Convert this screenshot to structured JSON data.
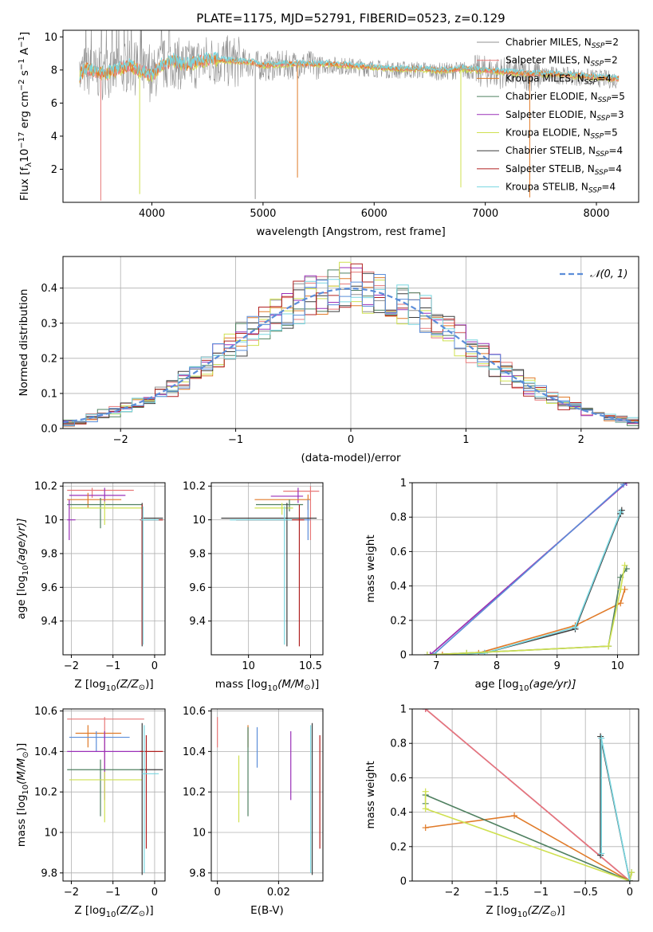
{
  "figure_title": "PLATE=1175, MJD=52791, FIBERID=0523, z=0.129",
  "colors": {
    "chabrier_miles": "#909090",
    "salpeter_miles": "#e87878",
    "kroupa_miles": "#e07a28",
    "chabrier_elodie": "#4f8060",
    "salpeter_elodie": "#9a30b8",
    "kroupa_elodie": "#cfe050",
    "chabrier_stelib": "#3c3c3c",
    "salpeter_stelib": "#b02020",
    "kroupa_stelib": "#78d6e0",
    "normal_curve": "#5b8dd9",
    "grid": "#b0b0b0"
  },
  "chart_data": [
    {
      "id": "spectrum",
      "type": "line",
      "title": "PLATE=1175, MJD=52791, FIBERID=0523, z=0.129",
      "xlabel": "wavelength [Angstrom, rest frame]",
      "ylabel_parts": [
        "Flux [f",
        "λ",
        "10",
        "−17",
        " erg cm",
        "−2",
        " s",
        "−1",
        " A",
        "−1",
        "]"
      ],
      "xlim": [
        3200,
        8380
      ],
      "ylim": [
        0,
        10.4
      ],
      "xticks": [
        4000,
        5000,
        6000,
        7000,
        8000
      ],
      "yticks": [
        2,
        4,
        6,
        8,
        10
      ],
      "grid": false,
      "legend_position": "right",
      "series": [
        {
          "name": "Chabrier MILES, N",
          "sub": "SSP",
          "suffix": "=2",
          "color_key": "chabrier_miles",
          "noisy": true
        },
        {
          "name": "Salpeter MILES, N",
          "sub": "SSP",
          "suffix": "=2",
          "color_key": "salpeter_miles"
        },
        {
          "name": "Kroupa MILES, N",
          "sub": "SSP",
          "suffix": "=4",
          "color_key": "kroupa_miles"
        },
        {
          "name": "Chabrier ELODIE, N",
          "sub": "SSP",
          "suffix": "=5",
          "color_key": "chabrier_elodie"
        },
        {
          "name": "Salpeter ELODIE, N",
          "sub": "SSP",
          "suffix": "=3",
          "color_key": "salpeter_elodie"
        },
        {
          "name": "Kroupa ELODIE, N",
          "sub": "SSP",
          "suffix": "=5",
          "color_key": "kroupa_elodie"
        },
        {
          "name": "Chabrier STELIB, N",
          "sub": "SSP",
          "suffix": "=4",
          "color_key": "chabrier_stelib"
        },
        {
          "name": "Salpeter STELIB, N",
          "sub": "SSP",
          "suffix": "=4",
          "color_key": "salpeter_stelib"
        },
        {
          "name": "Kroupa STELIB, N",
          "sub": "SSP",
          "suffix": "=4",
          "color_key": "kroupa_stelib"
        }
      ],
      "continuum": {
        "x": [
          3350,
          3400,
          3500,
          3600,
          3700,
          3800,
          3900,
          4000,
          4100,
          4200,
          4300,
          4400,
          4500,
          4700,
          4900,
          5000,
          5200,
          5400,
          5600,
          5800,
          6000,
          6200,
          6400,
          6600,
          6800,
          7000,
          7200,
          7400,
          7600,
          7800,
          8000,
          8200
        ],
        "y": [
          7.6,
          8.0,
          7.8,
          7.7,
          8.0,
          8.2,
          7.9,
          7.6,
          8.3,
          8.5,
          8.2,
          8.4,
          8.6,
          8.5,
          8.4,
          8.2,
          8.3,
          8.3,
          8.3,
          8.2,
          8.1,
          8.0,
          8.0,
          7.9,
          8.0,
          7.9,
          7.8,
          7.7,
          7.7,
          7.6,
          7.5,
          7.4
        ]
      },
      "dips": [
        {
          "x": 3540,
          "y": 0.1
        },
        {
          "x": 3890,
          "y": 0.5
        },
        {
          "x": 4930,
          "y": 0.2
        },
        {
          "x": 5310,
          "y": 1.5
        },
        {
          "x": 6780,
          "y": 0.9
        },
        {
          "x": 7400,
          "y": 0.3
        }
      ]
    },
    {
      "id": "residuals",
      "type": "histogram",
      "xlabel": "(data-model)/error",
      "ylabel": "Normed distribution",
      "xlim": [
        -2.5,
        2.5
      ],
      "ylim": [
        0,
        0.49
      ],
      "xticks": [
        -2,
        -1,
        0,
        1,
        2
      ],
      "yticks": [
        0.0,
        0.1,
        0.2,
        0.3,
        0.4
      ],
      "grid": true,
      "legend_position": "top-right",
      "curve_label": "𝒩(0, 1)",
      "bin_width": 0.1
    },
    {
      "id": "age_vs_z",
      "type": "errorbar",
      "xlabel_parts": [
        "Z [log",
        "10",
        "(Z/Z",
        "⊙",
        ")]"
      ],
      "ylabel_parts": [
        "age  [log",
        "10",
        "(age/yr)]"
      ],
      "xlim": [
        -2.2,
        0.25
      ],
      "ylim": [
        9.2,
        10.22
      ],
      "xticks": [
        -2,
        -1,
        0
      ],
      "yticks": [
        9.4,
        9.6,
        9.8,
        10.0,
        10.2
      ],
      "grid": true,
      "points": [
        {
          "x": -1.5,
          "xlo": -2.1,
          "xhi": -0.5,
          "y": 10.175,
          "ylo": 10.13,
          "yhi": 10.19,
          "c": "salpeter_miles"
        },
        {
          "x": -1.2,
          "xlo": -2.05,
          "xhi": -0.7,
          "y": 10.145,
          "ylo": 10.1,
          "yhi": 10.19,
          "c": "salpeter_elodie"
        },
        {
          "x": -1.6,
          "xlo": -2.1,
          "xhi": -0.8,
          "y": 10.12,
          "ylo": 10.07,
          "yhi": 10.16,
          "c": "kroupa_miles"
        },
        {
          "x": -1.3,
          "xlo": -2.1,
          "xhi": -0.3,
          "y": 10.09,
          "ylo": 9.95,
          "yhi": 10.13,
          "c": "chabrier_elodie"
        },
        {
          "x": -1.2,
          "xlo": -2.05,
          "xhi": -0.3,
          "y": 10.07,
          "ylo": 9.97,
          "yhi": 10.11,
          "c": "kroupa_elodie"
        },
        {
          "x": -2.05,
          "xlo": -2.1,
          "xhi": -1.9,
          "y": 10.0,
          "ylo": 9.88,
          "yhi": 10.12,
          "c": "salpeter_elodie"
        },
        {
          "x": -0.3,
          "xlo": -0.32,
          "xhi": 0.2,
          "y": 10.01,
          "ylo": 9.25,
          "yhi": 10.1,
          "c": "chabrier_stelib"
        },
        {
          "x": -0.3,
          "xlo": -0.35,
          "xhi": 0.2,
          "y": 10.0,
          "ylo": 9.26,
          "yhi": 10.09,
          "c": "salpeter_stelib"
        },
        {
          "x": -0.28,
          "xlo": -0.33,
          "xhi": 0.1,
          "y": 10.0,
          "ylo": 9.26,
          "yhi": 10.08,
          "c": "kroupa_stelib"
        }
      ]
    },
    {
      "id": "age_vs_mass",
      "type": "errorbar",
      "xlabel_parts": [
        "mass [log",
        "10",
        "(M/M",
        "⊙",
        ")]"
      ],
      "xlim": [
        9.7,
        10.6
      ],
      "ylim": [
        9.2,
        10.22
      ],
      "xticks": [
        10.0,
        10.5
      ],
      "yticks": [
        9.4,
        9.6,
        9.8,
        10.0,
        10.2
      ],
      "grid": true,
      "points": [
        {
          "x": 10.5,
          "xlo": 10.28,
          "xhi": 10.57,
          "y": 10.17,
          "ylo": 9.88,
          "yhi": 10.2,
          "c": "salpeter_miles"
        },
        {
          "x": 10.4,
          "xlo": 10.18,
          "xhi": 10.44,
          "y": 10.14,
          "ylo": 10.1,
          "yhi": 10.19,
          "c": "salpeter_elodie"
        },
        {
          "x": 10.48,
          "xlo": 10.05,
          "xhi": 10.5,
          "y": 10.12,
          "ylo": 10.06,
          "yhi": 10.15,
          "c": "kroupa_miles"
        },
        {
          "x": 10.33,
          "xlo": 10.06,
          "xhi": 10.44,
          "y": 10.09,
          "ylo": 10.05,
          "yhi": 10.12,
          "c": "chabrier_elodie"
        },
        {
          "x": 10.27,
          "xlo": 10.05,
          "xhi": 10.36,
          "y": 10.07,
          "ylo": 10.03,
          "yhi": 10.1,
          "c": "kroupa_elodie"
        },
        {
          "x": 10.48,
          "xlo": 10.45,
          "xhi": 10.5,
          "y": 10.0,
          "ylo": 9.88,
          "yhi": 10.12,
          "c": "normal_curve"
        },
        {
          "x": 10.31,
          "xlo": 9.78,
          "xhi": 10.55,
          "y": 10.01,
          "ylo": 9.25,
          "yhi": 10.1,
          "c": "chabrier_stelib"
        },
        {
          "x": 10.41,
          "xlo": 9.9,
          "xhi": 10.45,
          "y": 10.0,
          "ylo": 9.25,
          "yhi": 10.09,
          "c": "salpeter_stelib"
        },
        {
          "x": 10.29,
          "xlo": 9.85,
          "xhi": 10.35,
          "y": 10.0,
          "ylo": 9.26,
          "yhi": 10.08,
          "c": "kroupa_stelib"
        }
      ]
    },
    {
      "id": "weight_vs_age",
      "type": "line",
      "xlabel_parts": [
        "age  [log",
        "10",
        "(age/yr)]"
      ],
      "ylabel": "mass weight",
      "xlim": [
        6.6,
        10.35
      ],
      "ylim": [
        0,
        1.0
      ],
      "xticks": [
        7,
        8,
        9,
        10
      ],
      "yticks": [
        0.0,
        0.2,
        0.4,
        0.6,
        0.8,
        1.0
      ],
      "grid": true,
      "series": [
        {
          "c": "salpeter_miles",
          "x": [
            6.9,
            10.15
          ],
          "y": [
            0.0,
            1.0
          ]
        },
        {
          "c": "salpeter_elodie",
          "x": [
            6.9,
            10.15
          ],
          "y": [
            0.0,
            1.0
          ]
        },
        {
          "c": "normal_curve",
          "x": [
            6.95,
            10.1
          ],
          "y": [
            0.0,
            0.99
          ]
        },
        {
          "c": "kroupa_miles",
          "x": [
            7.1,
            7.7,
            9.3,
            10.05,
            10.12
          ],
          "y": [
            0.0,
            0.01,
            0.17,
            0.3,
            0.38
          ]
        },
        {
          "c": "chabrier_stelib",
          "x": [
            7.0,
            7.8,
            9.3,
            10.05,
            10.07
          ],
          "y": [
            0.0,
            0.01,
            0.15,
            0.82,
            0.84
          ]
        },
        {
          "c": "kroupa_stelib",
          "x": [
            7.0,
            7.8,
            9.3,
            10.05
          ],
          "y": [
            0.0,
            0.01,
            0.16,
            0.83
          ]
        },
        {
          "c": "chabrier_elodie",
          "x": [
            6.85,
            7.5,
            9.85,
            10.05,
            10.15
          ],
          "y": [
            0.0,
            0.01,
            0.05,
            0.45,
            0.5
          ]
        },
        {
          "c": "kroupa_elodie",
          "x": [
            6.85,
            7.5,
            9.85,
            10.05,
            10.12
          ],
          "y": [
            0.0,
            0.01,
            0.05,
            0.38,
            0.52
          ]
        }
      ]
    },
    {
      "id": "mass_vs_z",
      "type": "errorbar",
      "xlabel_parts": [
        "Z [log",
        "10",
        "(Z/Z",
        "⊙",
        ")]"
      ],
      "ylabel_parts": [
        "mass [log",
        "10",
        "(M/M",
        "⊙",
        ")]"
      ],
      "xlim": [
        -2.2,
        0.25
      ],
      "ylim": [
        9.76,
        10.61
      ],
      "xticks": [
        -2,
        -1,
        0
      ],
      "yticks": [
        9.8,
        10.0,
        10.2,
        10.4,
        10.6
      ],
      "grid": true,
      "points": [
        {
          "x": -1.2,
          "xlo": -2.1,
          "xhi": -0.25,
          "y": 10.56,
          "ylo": 10.3,
          "yhi": 10.57,
          "c": "salpeter_miles"
        },
        {
          "x": -1.6,
          "xlo": -1.9,
          "xhi": -0.8,
          "y": 10.49,
          "ylo": 10.42,
          "yhi": 10.53,
          "c": "kroupa_miles"
        },
        {
          "x": -1.4,
          "xlo": -2.05,
          "xhi": -0.6,
          "y": 10.47,
          "ylo": 10.4,
          "yhi": 10.5,
          "c": "normal_curve"
        },
        {
          "x": -1.2,
          "xlo": -2.1,
          "xhi": -0.3,
          "y": 10.4,
          "ylo": 10.16,
          "yhi": 10.5,
          "c": "salpeter_elodie"
        },
        {
          "x": -1.3,
          "xlo": -2.1,
          "xhi": -0.2,
          "y": 10.31,
          "ylo": 10.08,
          "yhi": 10.36,
          "c": "chabrier_elodie"
        },
        {
          "x": -1.2,
          "xlo": -2.05,
          "xhi": -0.3,
          "y": 10.26,
          "ylo": 10.05,
          "yhi": 10.3,
          "c": "kroupa_elodie"
        },
        {
          "x": -0.3,
          "xlo": -0.35,
          "xhi": 0.2,
          "y": 10.31,
          "ylo": 9.79,
          "yhi": 10.54,
          "c": "chabrier_stelib"
        },
        {
          "x": -0.2,
          "xlo": -0.35,
          "xhi": 0.2,
          "y": 10.4,
          "ylo": 9.92,
          "yhi": 10.48,
          "c": "salpeter_stelib"
        },
        {
          "x": -0.25,
          "xlo": -0.3,
          "xhi": 0.1,
          "y": 10.29,
          "ylo": 9.8,
          "yhi": 10.53,
          "c": "kroupa_stelib"
        }
      ]
    },
    {
      "id": "mass_vs_ebv",
      "type": "errorbar",
      "xlabel": "E(B-V)",
      "xlim": [
        -0.002,
        0.0345
      ],
      "ylim": [
        9.76,
        10.61
      ],
      "xticks": [
        0.0,
        0.02
      ],
      "yticks": [
        9.8,
        10.0,
        10.2,
        10.4,
        10.6
      ],
      "grid": true,
      "points": [
        {
          "x": 0.0,
          "y": 10.5,
          "ylo": 10.42,
          "yhi": 10.57,
          "c": "salpeter_miles"
        },
        {
          "x": 0.01,
          "y": 10.47,
          "ylo": 10.42,
          "yhi": 10.53,
          "c": "kroupa_miles"
        },
        {
          "x": 0.013,
          "y": 10.42,
          "ylo": 10.32,
          "yhi": 10.52,
          "c": "normal_curve"
        },
        {
          "x": 0.024,
          "y": 10.35,
          "ylo": 10.16,
          "yhi": 10.5,
          "c": "salpeter_elodie"
        },
        {
          "x": 0.01,
          "y": 10.3,
          "ylo": 10.08,
          "yhi": 10.52,
          "c": "chabrier_elodie"
        },
        {
          "x": 0.007,
          "y": 10.2,
          "ylo": 10.05,
          "yhi": 10.38,
          "c": "kroupa_elodie"
        },
        {
          "x": 0.031,
          "y": 10.2,
          "ylo": 9.79,
          "yhi": 10.54,
          "c": "chabrier_stelib"
        },
        {
          "x": 0.0335,
          "y": 10.2,
          "ylo": 9.92,
          "yhi": 10.48,
          "c": "salpeter_stelib"
        },
        {
          "x": 0.0305,
          "y": 10.2,
          "ylo": 9.8,
          "yhi": 10.53,
          "c": "kroupa_stelib"
        }
      ]
    },
    {
      "id": "weight_vs_z",
      "type": "line",
      "xlabel_parts": [
        "Z [log",
        "10",
        "(Z/Z",
        "⊙",
        ")]"
      ],
      "ylabel": "mass weight",
      "xlim": [
        -2.45,
        0.1
      ],
      "ylim": [
        0,
        1.0
      ],
      "xticks": [
        -2.0,
        -1.5,
        -1.0,
        -0.5,
        0.0
      ],
      "yticks": [
        0.0,
        0.2,
        0.4,
        0.6,
        0.8,
        1.0
      ],
      "grid": true,
      "series": [
        {
          "c": "salpeter_elodie",
          "x": [
            -2.3,
            0.0
          ],
          "y": [
            1.0,
            0.0
          ]
        },
        {
          "c": "salpeter_miles",
          "x": [
            -2.3,
            0.0
          ],
          "y": [
            1.0,
            0.0
          ]
        },
        {
          "c": "kroupa_miles",
          "x": [
            -2.3,
            -1.3,
            0.0
          ],
          "y": [
            0.31,
            0.38,
            0.0
          ]
        },
        {
          "c": "chabrier_elodie",
          "x": [
            -2.3,
            -2.3,
            0.0,
            0.02
          ],
          "y": [
            0.45,
            0.5,
            0.0,
            0.05
          ]
        },
        {
          "c": "kroupa_elodie",
          "x": [
            -2.3,
            -2.3,
            0.0,
            0.02
          ],
          "y": [
            0.52,
            0.42,
            0.0,
            0.05
          ]
        },
        {
          "c": "chabrier_stelib",
          "x": [
            -0.33,
            -0.33,
            0.0
          ],
          "y": [
            0.15,
            0.84,
            0.0
          ]
        },
        {
          "c": "kroupa_stelib",
          "x": [
            -0.32,
            -0.32,
            0.0
          ],
          "y": [
            0.16,
            0.83,
            0.0
          ]
        }
      ]
    }
  ]
}
